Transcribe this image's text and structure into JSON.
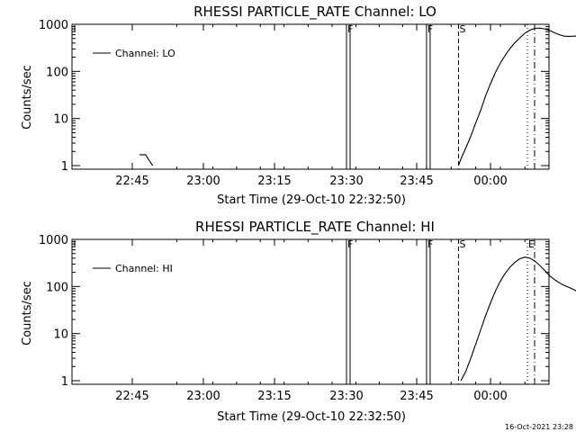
{
  "footer": {
    "timestamp": "16-Oct-2021 23:28"
  },
  "chart_data": [
    {
      "type": "line",
      "title": "RHESSI PARTICLE_RATE Channel: LO",
      "xlabel": "Start Time (29-Oct-10 22:32:50)",
      "ylabel": "Counts/sec",
      "y_scale": "log",
      "ylim": [
        1,
        1000
      ],
      "y_ticks": [
        "1",
        "10",
        "100",
        "1000"
      ],
      "x_ticks": [
        "22:45",
        "23:00",
        "23:15",
        "23:30",
        "23:45",
        "00:00"
      ],
      "x_tick_minutes": [
        772,
        780,
        795,
        810,
        825,
        840
      ],
      "xlim_minutes": [
        772.8,
        867.8
      ],
      "legend": {
        "label": "Channel: LO",
        "placement": "top-left"
      },
      "markers": [
        {
          "kind": "flag",
          "label": "F",
          "minute": 810
        },
        {
          "kind": "flag",
          "label": "F",
          "minute": 827
        },
        {
          "kind": "dashed",
          "label": "S",
          "minute": 833.5
        },
        {
          "kind": "dotted",
          "label": "",
          "minute": 847.5
        },
        {
          "kind": "dashdot",
          "label": "",
          "minute": 869
        }
      ],
      "series": [
        {
          "name": "Channel: LO",
          "segments": [
            {
              "x": [
                772.8,
                773.5,
                774.0,
                774.3
              ],
              "y": [
                1.7,
                1.7,
                1.2,
                1.0
              ]
            },
            {
              "x": [
                833.5,
                834.0,
                835.0,
                836.0,
                837.0,
                838.0,
                839.0,
                840.0,
                841.0,
                842.0,
                843.0,
                844.0,
                845.0,
                846.0,
                847.0,
                848.0,
                849.0,
                850.0,
                851.0,
                852.0,
                853.0,
                854.0,
                855.0,
                856.0,
                857.0,
                858.0,
                859.0,
                860.0,
                861.0,
                862.0,
                863.0,
                864.0,
                865.0,
                866.0,
                867.0,
                867.8
              ],
              "y": [
                1,
                1.4,
                2.4,
                4.2,
                8,
                15,
                30,
                55,
                95,
                150,
                220,
                310,
                410,
                520,
                650,
                750,
                820,
                830,
                800,
                740,
                660,
                600,
                560,
                555,
                560,
                560,
                555,
                550,
                540,
                520,
                480,
                420,
                350,
                270,
                180,
                110
              ]
            }
          ]
        }
      ]
    },
    {
      "type": "line",
      "title": "RHESSI PARTICLE_RATE Channel: HI",
      "xlabel": "Start Time (29-Oct-10 22:32:50)",
      "ylabel": "Counts/sec",
      "y_scale": "log",
      "ylim": [
        1,
        1000
      ],
      "y_ticks": [
        "1",
        "10",
        "100",
        "1000"
      ],
      "x_ticks": [
        "22:45",
        "23:00",
        "23:15",
        "23:30",
        "23:45",
        "00:00"
      ],
      "x_tick_minutes": [
        772,
        780,
        795,
        810,
        825,
        840
      ],
      "xlim_minutes": [
        772.8,
        867.8
      ],
      "legend": {
        "label": "Channel: HI",
        "placement": "top-left"
      },
      "markers": [
        {
          "kind": "flag",
          "label": "F",
          "minute": 810
        },
        {
          "kind": "flag",
          "label": "F",
          "minute": 827
        },
        {
          "kind": "dashed",
          "label": "S",
          "minute": 833.5
        },
        {
          "kind": "dotted",
          "label": "E",
          "minute": 847.5
        },
        {
          "kind": "dashdot",
          "label": "",
          "minute": 869
        }
      ],
      "series": [
        {
          "name": "Channel: HI",
          "segments": [
            {
              "x": [
                834.0,
                835.0,
                836.0,
                837.0,
                838.0,
                839.0,
                840.0,
                841.0,
                842.0,
                843.0,
                844.0,
                845.0,
                846.0,
                847.0,
                848.0,
                849.0,
                850.0,
                851.0,
                852.0,
                853.0,
                854.0,
                855.0,
                856.0,
                857.0,
                858.0,
                859.0,
                860.0,
                861.0,
                862.0,
                863.0,
                864.0,
                865.0,
                866.0,
                867.0,
                867.8
              ],
              "y": [
                1,
                1.6,
                3,
                6,
                12,
                24,
                45,
                80,
                130,
                190,
                260,
                330,
                390,
                420,
                400,
                350,
                280,
                220,
                170,
                140,
                120,
                105,
                95,
                85,
                75,
                65,
                55,
                48,
                42,
                40,
                38,
                37,
                35,
                32,
                28
              ]
            }
          ]
        }
      ]
    }
  ]
}
